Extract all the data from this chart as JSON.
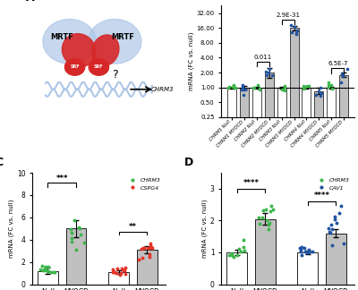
{
  "panel_B": {
    "categories": [
      "CHRM1 Null",
      "CHRM1 MYOCD",
      "CHRM2 Null",
      "CHRM2 MYOCD",
      "CHRM3 Null",
      "CHRM3 MYOCD",
      "CHRM4 Null",
      "CHRM4 MYOCD",
      "CHRM5 Null",
      "CHRM5 MYOCD"
    ],
    "bar_means": [
      1.0,
      1.0,
      1.0,
      2.0,
      1.0,
      16.0,
      1.0,
      0.85,
      1.0,
      1.8
    ],
    "bar_errors": [
      0.05,
      0.08,
      0.05,
      0.45,
      0.05,
      1.8,
      0.05,
      0.12,
      0.05,
      0.2
    ],
    "dot_colors_null": "#3cb54a",
    "dot_colors_myocd": "#2154a0",
    "ylabel": "mRNA (FC vs. null)",
    "yticks": [
      0.25,
      0.5,
      1,
      2,
      4,
      8,
      16,
      32
    ]
  },
  "panel_C": {
    "bar_means": [
      1.2,
      5.0,
      1.1,
      3.1
    ],
    "bar_errors": [
      0.25,
      0.75,
      0.15,
      0.35
    ],
    "dot_color_chrm3": "#3cb54a",
    "dot_color_cspg4": "#e63428",
    "xtick_labels": [
      "Null",
      "MYOCD",
      "Null",
      "MYOCD"
    ],
    "ylim": [
      0,
      10
    ],
    "yticks": [
      0,
      2,
      4,
      6,
      8,
      10
    ],
    "ylabel": "mRNA (FC vs. null)"
  },
  "panel_D": {
    "bar_means": [
      1.0,
      2.05,
      1.0,
      1.6
    ],
    "bar_errors": [
      0.08,
      0.18,
      0.06,
      0.12
    ],
    "dot_color_chrm3": "#3cb54a",
    "dot_color_cav1": "#2154a0",
    "xtick_labels": [
      "Null",
      "MYOCD",
      "Null",
      "MYOCD"
    ],
    "ylim": [
      0,
      3.5
    ],
    "yticks": [
      0,
      1,
      2,
      3
    ],
    "ylabel": "mRNA (FC vs. null)"
  },
  "panel_A": {
    "mrtf_color": "#d62728",
    "mrtf_bg_color": "#aec6e8",
    "srf_color": "#d62728",
    "dna_color": "#aec6e8",
    "arrow_color": "black",
    "chrm3_label": "CHRM3"
  }
}
